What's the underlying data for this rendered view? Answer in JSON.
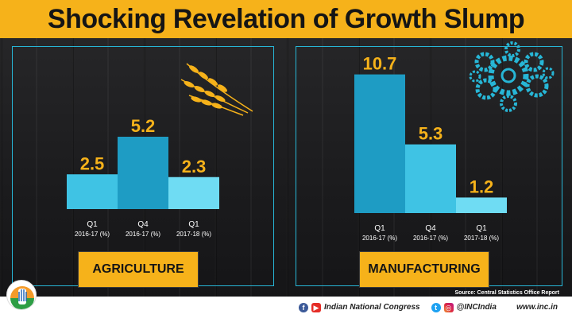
{
  "title": "Shocking Revelation of Growth Slump",
  "chart_data": [
    {
      "type": "bar",
      "name": "AGRICULTURE",
      "categories": [
        {
          "quarter": "Q1",
          "period": "2016-17 (%)"
        },
        {
          "quarter": "Q4",
          "period": "2016-17 (%)"
        },
        {
          "quarter": "Q1",
          "period": "2017-18 (%)"
        }
      ],
      "values": [
        2.5,
        5.2,
        2.3
      ],
      "value_labels": [
        "2.5",
        "5.2",
        "2.3"
      ],
      "colors": [
        "#3fc3e4",
        "#1e9cc4",
        "#6fdcf3"
      ],
      "label_color": "#f6b21a"
    },
    {
      "type": "bar",
      "name": "MANUFACTURING",
      "categories": [
        {
          "quarter": "Q1",
          "period": "2016-17 (%)"
        },
        {
          "quarter": "Q4",
          "period": "2016-17 (%)"
        },
        {
          "quarter": "Q1",
          "period": "2017-18 (%)"
        }
      ],
      "values": [
        10.7,
        5.3,
        1.2
      ],
      "value_labels": [
        "10.7",
        "5.3",
        "1.2"
      ],
      "colors": [
        "#1e9cc4",
        "#3fc3e4",
        "#6fdcf3"
      ],
      "label_color": "#f6b21a"
    }
  ],
  "source": "Source: Central Statistics Office Report",
  "footer": {
    "party": "Indian National Congress",
    "handle": "@INCIndia",
    "website": "www.inc.in",
    "icons": [
      "facebook-icon",
      "youtube-icon",
      "twitter-icon",
      "instagram-icon"
    ]
  },
  "colors": {
    "accent": "#f6b21a",
    "panel_border": "#27b6d6"
  }
}
